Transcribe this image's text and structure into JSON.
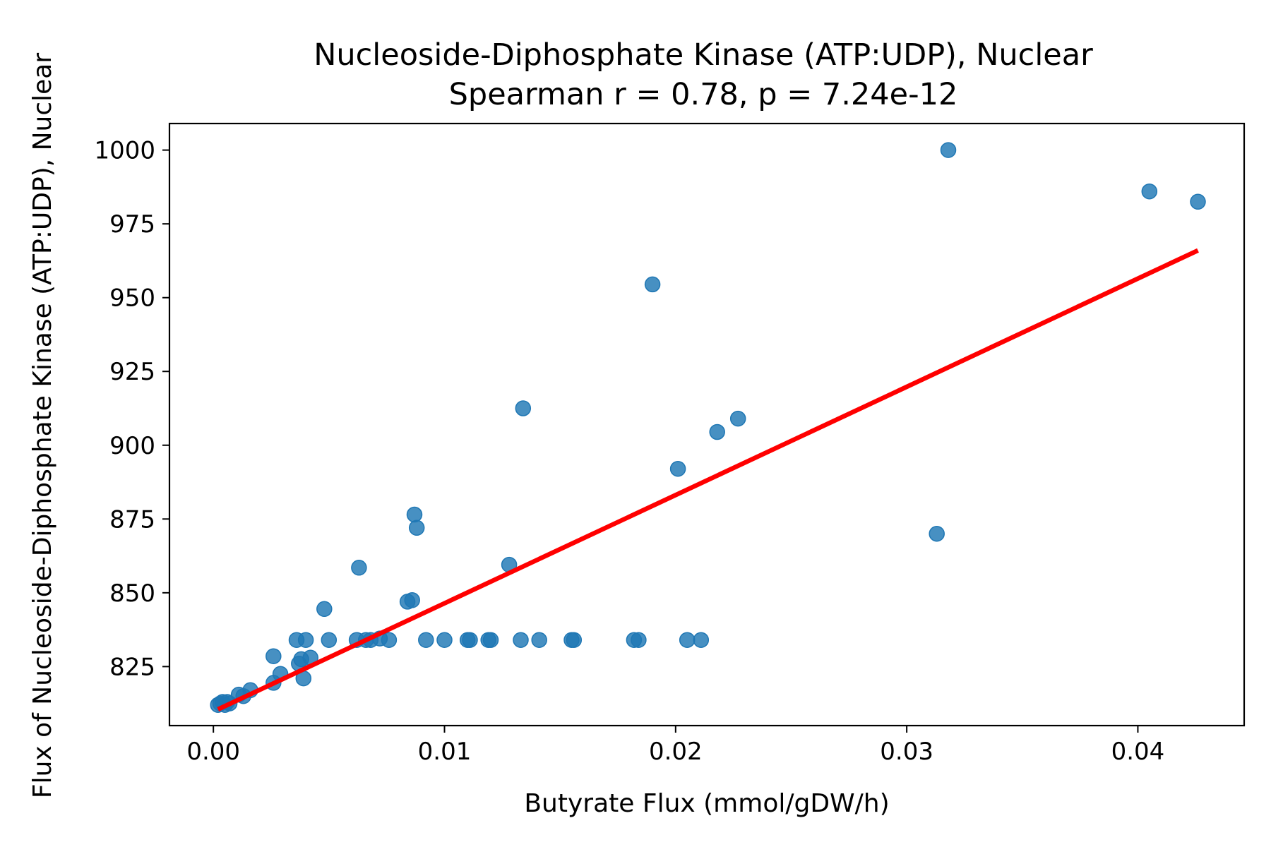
{
  "chart_data": {
    "type": "scatter",
    "title": "Nucleoside-Diphosphate Kinase (ATP:UDP), Nuclear",
    "subtitle": "Spearman r = 0.78, p = 7.24e-12",
    "xlabel": "Butyrate Flux (mmol/gDW/h)",
    "ylabel": "Flux of Nucleoside-Diphosphate Kinase (ATP:UDP), Nuclear",
    "xlim": [
      -0.0019,
      0.0446
    ],
    "ylim": [
      805,
      1009
    ],
    "xticks": [
      0.0,
      0.01,
      0.02,
      0.03,
      0.04
    ],
    "xtick_labels": [
      "0.00",
      "0.01",
      "0.02",
      "0.03",
      "0.04"
    ],
    "yticks": [
      825,
      850,
      875,
      900,
      925,
      950,
      975,
      1000
    ],
    "ytick_labels": [
      "825",
      "850",
      "875",
      "900",
      "925",
      "950",
      "975",
      "1000"
    ],
    "grid": false,
    "legend": "none",
    "colors": {
      "points": "#1f77b4",
      "fit_line": "#ff0000"
    },
    "fit_line": {
      "x": [
        0.0002,
        0.0426
      ],
      "y": [
        810.5,
        966.0
      ]
    },
    "points": [
      {
        "x": 0.0002,
        "y": 812
      },
      {
        "x": 0.0003,
        "y": 812.5
      },
      {
        "x": 0.0004,
        "y": 813
      },
      {
        "x": 0.0005,
        "y": 812
      },
      {
        "x": 0.0006,
        "y": 813
      },
      {
        "x": 0.0007,
        "y": 812.5
      },
      {
        "x": 0.0011,
        "y": 815.5
      },
      {
        "x": 0.0013,
        "y": 815
      },
      {
        "x": 0.0016,
        "y": 817
      },
      {
        "x": 0.0026,
        "y": 819.5
      },
      {
        "x": 0.0029,
        "y": 822.5
      },
      {
        "x": 0.0026,
        "y": 828.5
      },
      {
        "x": 0.0036,
        "y": 834
      },
      {
        "x": 0.0037,
        "y": 826
      },
      {
        "x": 0.0038,
        "y": 827.5
      },
      {
        "x": 0.0039,
        "y": 821
      },
      {
        "x": 0.004,
        "y": 834
      },
      {
        "x": 0.0042,
        "y": 828
      },
      {
        "x": 0.0048,
        "y": 844.5
      },
      {
        "x": 0.005,
        "y": 834
      },
      {
        "x": 0.0062,
        "y": 834
      },
      {
        "x": 0.0063,
        "y": 858.5
      },
      {
        "x": 0.0066,
        "y": 834
      },
      {
        "x": 0.0068,
        "y": 834
      },
      {
        "x": 0.0072,
        "y": 834.5
      },
      {
        "x": 0.0076,
        "y": 834
      },
      {
        "x": 0.0084,
        "y": 847
      },
      {
        "x": 0.0086,
        "y": 847.5
      },
      {
        "x": 0.0087,
        "y": 876.5
      },
      {
        "x": 0.0088,
        "y": 872
      },
      {
        "x": 0.0092,
        "y": 834
      },
      {
        "x": 0.01,
        "y": 834
      },
      {
        "x": 0.011,
        "y": 834
      },
      {
        "x": 0.0111,
        "y": 834
      },
      {
        "x": 0.0119,
        "y": 834
      },
      {
        "x": 0.012,
        "y": 834
      },
      {
        "x": 0.0128,
        "y": 859.5
      },
      {
        "x": 0.0133,
        "y": 834
      },
      {
        "x": 0.0134,
        "y": 912.5
      },
      {
        "x": 0.0141,
        "y": 834
      },
      {
        "x": 0.0155,
        "y": 834
      },
      {
        "x": 0.0156,
        "y": 834
      },
      {
        "x": 0.0182,
        "y": 834
      },
      {
        "x": 0.0184,
        "y": 834
      },
      {
        "x": 0.019,
        "y": 954.5
      },
      {
        "x": 0.0201,
        "y": 892
      },
      {
        "x": 0.0205,
        "y": 834
      },
      {
        "x": 0.0211,
        "y": 834
      },
      {
        "x": 0.0218,
        "y": 904.5
      },
      {
        "x": 0.0227,
        "y": 909
      },
      {
        "x": 0.0313,
        "y": 870
      },
      {
        "x": 0.0318,
        "y": 1000
      },
      {
        "x": 0.0405,
        "y": 986
      },
      {
        "x": 0.0426,
        "y": 982.5
      }
    ]
  }
}
